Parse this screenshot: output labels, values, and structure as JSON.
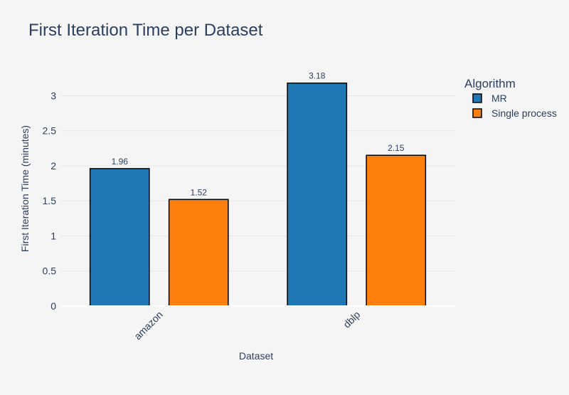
{
  "chart_data": {
    "type": "bar",
    "title": "First Iteration Time per Dataset",
    "xlabel": "Dataset",
    "ylabel": "First Iteration Time (minutes)",
    "categories": [
      "amazon",
      "dblp"
    ],
    "series": [
      {
        "name": "MR",
        "values": [
          1.96,
          3.18
        ],
        "color": "#1f77b4"
      },
      {
        "name": "Single process",
        "values": [
          1.52,
          2.15
        ],
        "color": "#ff7f0e"
      }
    ],
    "ylim": [
      0,
      3.35
    ],
    "yticks": [
      0,
      0.5,
      1,
      1.5,
      2,
      2.5,
      3
    ],
    "ytick_labels": [
      "0",
      "0.5",
      "1",
      "1.5",
      "2",
      "2.5",
      "3"
    ],
    "legend": {
      "title": "Algorithm",
      "placement": "top-right"
    },
    "grid": true,
    "colors": {
      "background": "#f5f5f5",
      "grid": "#e6e6e6",
      "text": "#2a3f5f",
      "bar_outline": "#000000"
    }
  }
}
